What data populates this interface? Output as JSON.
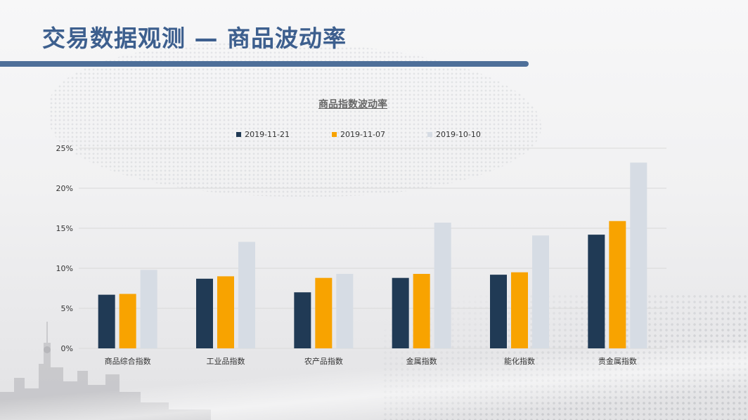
{
  "slide": {
    "title": "交易数据观测 — 商品波动率"
  },
  "colors": {
    "title": "#3d5f8e",
    "title_bar": "#4e6f99",
    "series": [
      "#203a55",
      "#f8a300",
      "#d6dce4"
    ],
    "gridline": "#d9d9d9"
  },
  "chart_data": {
    "type": "bar",
    "title": "商品指数波动率",
    "xlabel": "",
    "ylabel": "",
    "categories": [
      "商品综合指数",
      "工业品指数",
      "农产品指数",
      "金属指数",
      "能化指数",
      "贵金属指数"
    ],
    "series": [
      {
        "name": "2019-11-21",
        "values": [
          6.7,
          8.7,
          7.0,
          8.8,
          9.2,
          14.2
        ]
      },
      {
        "name": "2019-11-07",
        "values": [
          6.8,
          9.0,
          8.8,
          9.3,
          9.5,
          15.9
        ]
      },
      {
        "name": "2019-10-10",
        "values": [
          9.8,
          13.3,
          9.3,
          15.7,
          14.1,
          23.2
        ]
      }
    ],
    "ylim": [
      0,
      25
    ],
    "yticks": [
      0,
      5,
      10,
      15,
      20,
      25
    ],
    "ytick_labels": [
      "0%",
      "5%",
      "10%",
      "15%",
      "20%",
      "25%"
    ],
    "grid": true,
    "legend_position": "top-center"
  }
}
